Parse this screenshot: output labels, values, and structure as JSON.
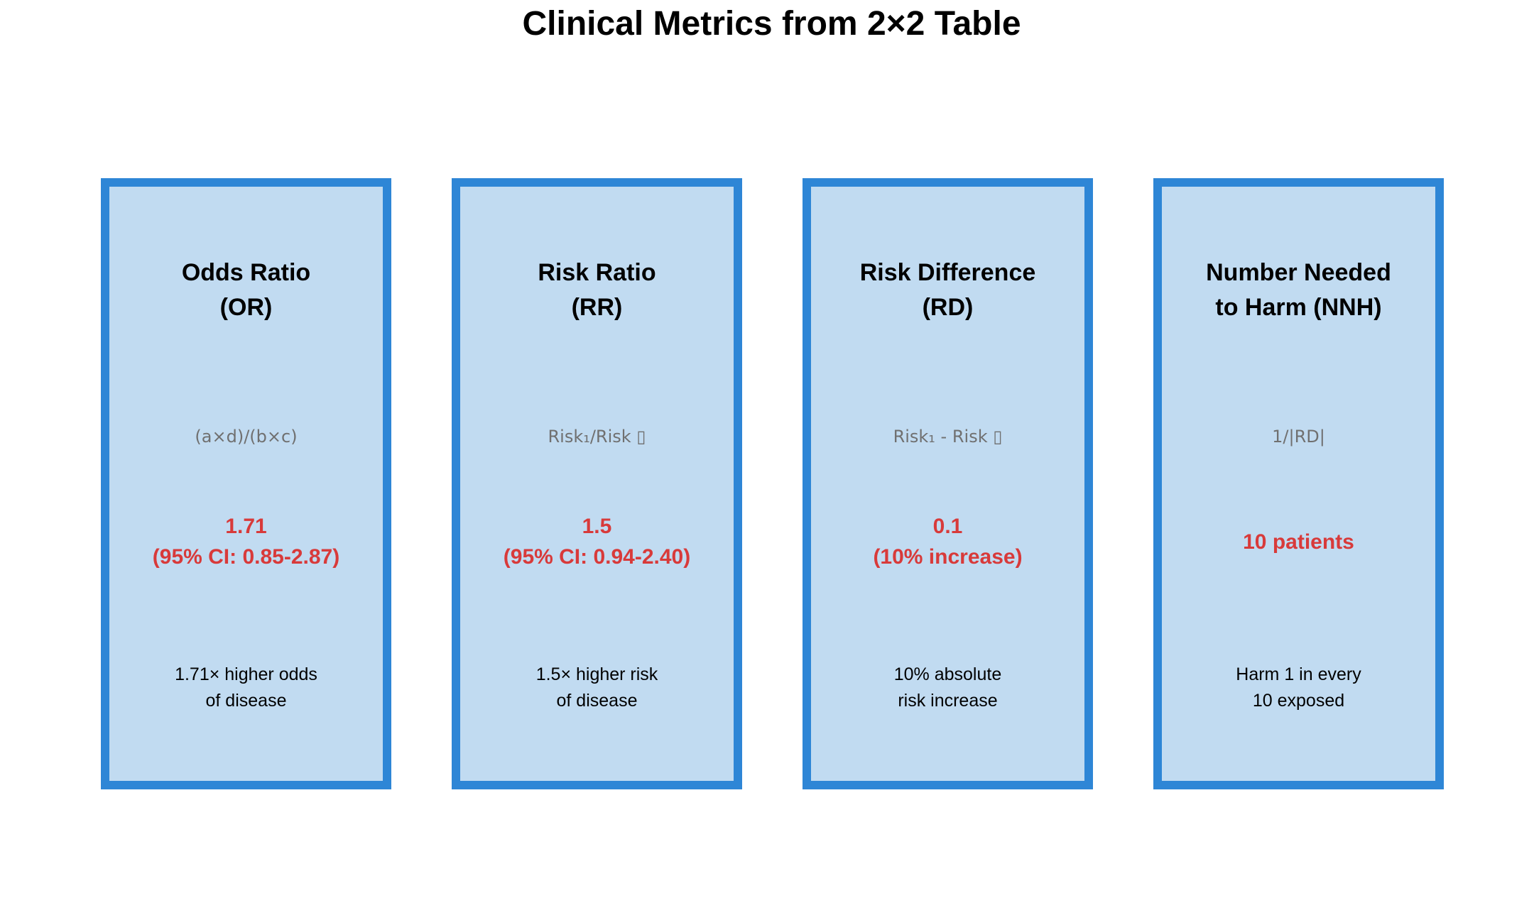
{
  "title": "Clinical Metrics from 2×2 Table",
  "accent_border": "#2e86d6",
  "card_fill": "#c1dbf1",
  "value_color": "#d83a3a",
  "cards": [
    {
      "title": "Odds Ratio\n(OR)",
      "formula": "(a×d)/(b×c)",
      "value": "1.71\n(95% CI: 0.85-2.87)",
      "description": "1.71× higher odds\nof disease"
    },
    {
      "title": "Risk Ratio\n(RR)",
      "formula": "Risk₁/Risk ▯",
      "value": "1.5\n(95% CI: 0.94-2.40)",
      "description": "1.5× higher risk\nof disease"
    },
    {
      "title": "Risk Difference\n(RD)",
      "formula": "Risk₁ - Risk ▯",
      "value": "0.1\n(10% increase)",
      "description": "10% absolute\nrisk increase"
    },
    {
      "title": "Number Needed\nto Harm (NNH)",
      "formula": "1/|RD|",
      "value": "10 patients",
      "description": "Harm 1 in every\n10 exposed"
    }
  ]
}
